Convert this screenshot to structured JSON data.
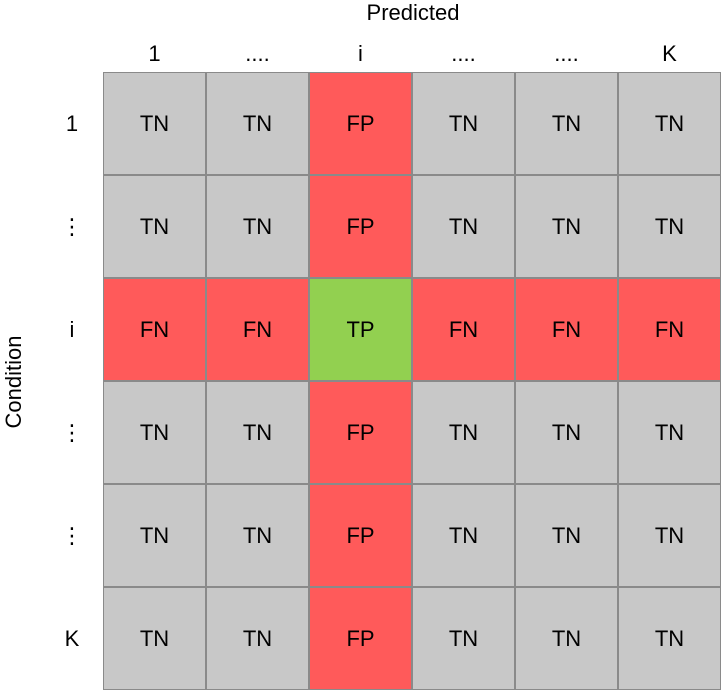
{
  "axes": {
    "predicted_label": "Predicted",
    "condition_label": "Condition"
  },
  "columns": [
    "1",
    "....",
    "i",
    "....",
    "....",
    "K"
  ],
  "rows": [
    "1",
    "⋮",
    "i",
    "⋮",
    "⋮",
    "K"
  ],
  "colors": {
    "TN": "#c8c8c8",
    "FP": "#ff5a5a",
    "FN": "#ff5a5a",
    "TP": "#92d050"
  },
  "matrix": [
    [
      "TN",
      "TN",
      "FP",
      "TN",
      "TN",
      "TN"
    ],
    [
      "TN",
      "TN",
      "FP",
      "TN",
      "TN",
      "TN"
    ],
    [
      "FN",
      "FN",
      "TP",
      "FN",
      "FN",
      "FN"
    ],
    [
      "TN",
      "TN",
      "FP",
      "TN",
      "TN",
      "TN"
    ],
    [
      "TN",
      "TN",
      "FP",
      "TN",
      "TN",
      "TN"
    ],
    [
      "TN",
      "TN",
      "FP",
      "TN",
      "TN",
      "TN"
    ]
  ]
}
